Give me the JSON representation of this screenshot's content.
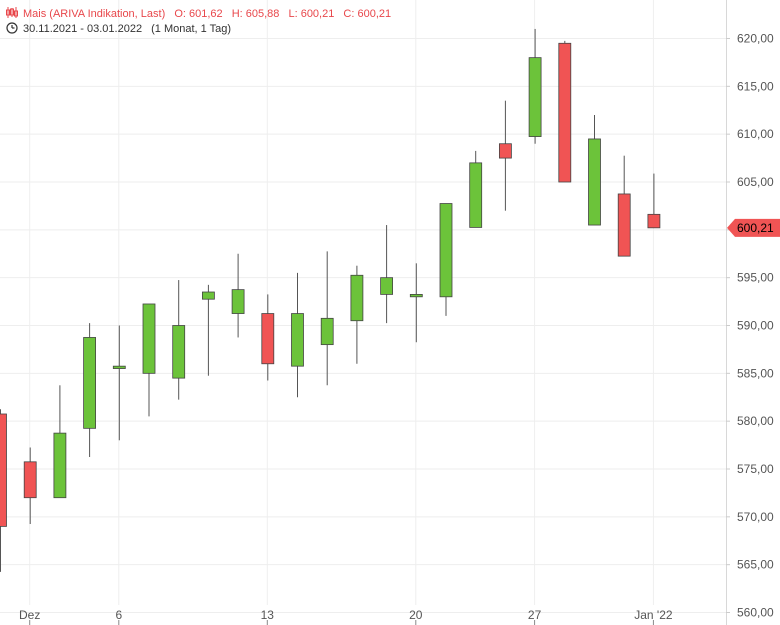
{
  "header": {
    "instrument": "Mais (ARIVA Indikation, Last)",
    "open": "O: 601,62",
    "high": "H: 605,88",
    "low": "L: 600,21",
    "close": "C: 600,21",
    "period": "30.11.2021 - 03.01.2022",
    "interval": "(1 Monat, 1 Tag)",
    "candles_icon": "candlestick-icon",
    "clock_icon": "clock-icon"
  },
  "colors": {
    "up": "#6cc33a",
    "down": "#f05454",
    "grid": "#eeeeee",
    "last_price": "#f05454"
  },
  "chart_data": {
    "type": "candlestick",
    "ylim": [
      560,
      622
    ],
    "yticks": [
      560,
      565,
      570,
      575,
      580,
      585,
      590,
      595,
      600,
      605,
      610,
      615,
      620
    ],
    "ytick_labels": [
      "560,00",
      "565,00",
      "570,00",
      "575,00",
      "580,00",
      "585,00",
      "590,00",
      "595,00",
      "600,00",
      "605,00",
      "610,00",
      "615,00",
      "620,00"
    ],
    "xticks": [
      {
        "date": "2021-12-01",
        "label": "Dez"
      },
      {
        "date": "2021-12-06",
        "label": "6"
      },
      {
        "date": "2021-12-13",
        "label": "13"
      },
      {
        "date": "2021-12-20",
        "label": "20"
      },
      {
        "date": "2021-12-27",
        "label": "27"
      },
      {
        "date": "2022-01-03",
        "label": "Jan '22"
      }
    ],
    "last_price": 600.21,
    "last_price_label": "600,21",
    "candles": [
      {
        "date": "2021-11-30",
        "open": 580.75,
        "high": 581.25,
        "low": 564.25,
        "close": 569.0
      },
      {
        "date": "2021-12-01",
        "open": 575.75,
        "high": 577.25,
        "low": 569.25,
        "close": 572.0
      },
      {
        "date": "2021-12-02",
        "open": 572.0,
        "high": 583.75,
        "low": 572.0,
        "close": 578.75
      },
      {
        "date": "2021-12-03",
        "open": 579.25,
        "high": 590.25,
        "low": 576.25,
        "close": 588.75
      },
      {
        "date": "2021-12-06",
        "open": 585.5,
        "high": 590.0,
        "low": 578.0,
        "close": 585.75
      },
      {
        "date": "2021-12-07",
        "open": 585.0,
        "high": 592.25,
        "low": 580.5,
        "close": 592.25
      },
      {
        "date": "2021-12-08",
        "open": 584.5,
        "high": 594.75,
        "low": 582.25,
        "close": 590.0
      },
      {
        "date": "2021-12-09",
        "open": 592.75,
        "high": 594.25,
        "low": 584.75,
        "close": 593.5
      },
      {
        "date": "2021-12-10",
        "open": 591.25,
        "high": 597.5,
        "low": 588.75,
        "close": 593.75
      },
      {
        "date": "2021-12-13",
        "open": 591.25,
        "high": 593.25,
        "low": 584.25,
        "close": 586.0
      },
      {
        "date": "2021-12-14",
        "open": 585.75,
        "high": 595.5,
        "low": 582.5,
        "close": 591.25
      },
      {
        "date": "2021-12-15",
        "open": 588.0,
        "high": 597.75,
        "low": 583.75,
        "close": 590.75
      },
      {
        "date": "2021-12-16",
        "open": 590.5,
        "high": 596.25,
        "low": 586.0,
        "close": 595.25
      },
      {
        "date": "2021-12-17",
        "open": 593.25,
        "high": 600.5,
        "low": 590.25,
        "close": 595.0
      },
      {
        "date": "2021-12-20",
        "open": 593.0,
        "high": 596.5,
        "low": 588.25,
        "close": 593.25
      },
      {
        "date": "2021-12-21",
        "open": 593.0,
        "high": 602.75,
        "low": 591.0,
        "close": 602.75
      },
      {
        "date": "2021-12-22",
        "open": 600.25,
        "high": 608.25,
        "low": 600.25,
        "close": 607.0
      },
      {
        "date": "2021-12-23",
        "open": 609.0,
        "high": 613.5,
        "low": 602.0,
        "close": 607.5
      },
      {
        "date": "2021-12-27",
        "open": 609.75,
        "high": 621.0,
        "low": 609.0,
        "close": 618.0
      },
      {
        "date": "2021-12-28",
        "open": 619.5,
        "high": 619.75,
        "low": 605.0,
        "close": 605.0
      },
      {
        "date": "2021-12-29",
        "open": 600.5,
        "high": 612.0,
        "low": 600.5,
        "close": 609.5
      },
      {
        "date": "2021-12-30",
        "open": 603.75,
        "high": 607.75,
        "low": 597.25,
        "close": 597.25
      },
      {
        "date": "2022-01-03",
        "open": 601.62,
        "high": 605.88,
        "low": 600.21,
        "close": 600.21
      }
    ]
  }
}
